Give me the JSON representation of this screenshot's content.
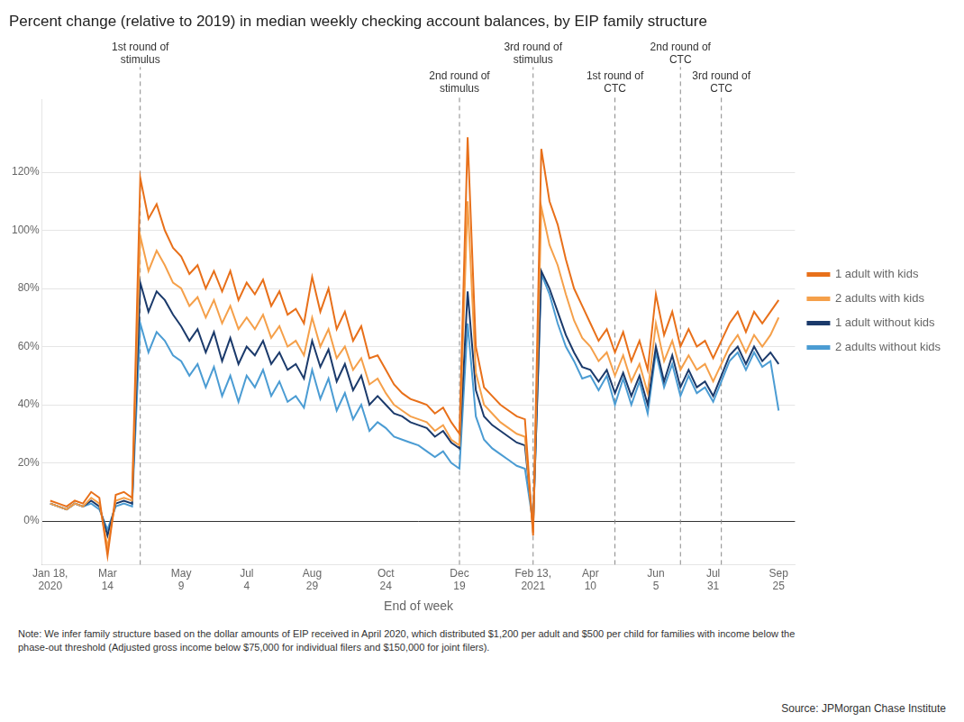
{
  "chart_data": {
    "type": "line",
    "title": "Percent change (relative to 2019) in median weekly checking account balances, by EIP family structure",
    "xlabel": "End of week",
    "note": "Note: We infer family structure based on the dollar amounts of EIP received in April 2020, which distributed $1,200 per adult and $500 per child for families with income below the\nphase-out threshold (Adjusted gross income below $75,000 for individual filers and $150,000 for joint filers).",
    "source": "Source: JPMorgan Chase Institute",
    "x": [
      0,
      1,
      2,
      3,
      4,
      5,
      6,
      7,
      8,
      9,
      10,
      11,
      12,
      13,
      14,
      15,
      16,
      17,
      18,
      19,
      20,
      21,
      22,
      23,
      24,
      25,
      26,
      27,
      28,
      29,
      30,
      31,
      32,
      33,
      34,
      35,
      36,
      37,
      38,
      39,
      40,
      41,
      42,
      43,
      44,
      45,
      46,
      47,
      48,
      49,
      50,
      51,
      52,
      53,
      54,
      55,
      56,
      57,
      58,
      59,
      60,
      61,
      62,
      63,
      64,
      65,
      66,
      67,
      68,
      69,
      70,
      71,
      72,
      73,
      74,
      75,
      76,
      77,
      78,
      79,
      80,
      81,
      82,
      83,
      84,
      85,
      86,
      87,
      88,
      89
    ],
    "xlim": [
      -1,
      91
    ],
    "xticks": [
      {
        "value": 0,
        "label": "Jan 18,\n2020"
      },
      {
        "value": 7,
        "label": "Mar\n14"
      },
      {
        "value": 16,
        "label": "May\n9"
      },
      {
        "value": 24,
        "label": "Jul\n4"
      },
      {
        "value": 32,
        "label": "Aug\n29"
      },
      {
        "value": 41,
        "label": "Oct\n24"
      },
      {
        "value": 50,
        "label": "Dec\n19"
      },
      {
        "value": 59,
        "label": "Feb 13,\n2021"
      },
      {
        "value": 66,
        "label": "Apr\n10"
      },
      {
        "value": 74,
        "label": "Jun\n5"
      },
      {
        "value": 81,
        "label": "Jul\n31"
      },
      {
        "value": 89,
        "label": "Sep\n25"
      }
    ],
    "ylim": [
      -0.15,
      1.45
    ],
    "yticks": [
      {
        "value": 0.0,
        "label": "0%"
      },
      {
        "value": 0.2,
        "label": "20%"
      },
      {
        "value": 0.4,
        "label": "40%"
      },
      {
        "value": 0.6,
        "label": "60%"
      },
      {
        "value": 0.8,
        "label": "80%"
      },
      {
        "value": 1.0,
        "label": "100%"
      },
      {
        "value": 1.2,
        "label": "120%"
      }
    ],
    "grid": "y",
    "legend": "right",
    "marker": "none",
    "annotations": [
      {
        "x": 11,
        "label": "1st round of\nstimulus"
      },
      {
        "x": 50,
        "label": "2nd round of\nstimulus"
      },
      {
        "x": 59,
        "label": "3rd round of\nstimulus"
      },
      {
        "x": 69,
        "label": "1st round of\nCTC"
      },
      {
        "x": 77,
        "label": "2nd round of\nCTC"
      },
      {
        "x": 82,
        "label": "3rd round of\nCTC"
      }
    ],
    "series": [
      {
        "name": "1 adult with kids",
        "color": "#E8701A",
        "values": [
          0.07,
          0.06,
          0.05,
          0.07,
          0.06,
          0.1,
          0.08,
          -0.12,
          0.09,
          0.1,
          0.08,
          1.18,
          1.04,
          1.09,
          1.0,
          0.94,
          0.91,
          0.85,
          0.88,
          0.8,
          0.86,
          0.79,
          0.86,
          0.76,
          0.82,
          0.78,
          0.83,
          0.74,
          0.79,
          0.71,
          0.73,
          0.68,
          0.84,
          0.72,
          0.8,
          0.66,
          0.72,
          0.62,
          0.67,
          0.56,
          0.57,
          0.52,
          0.47,
          0.44,
          0.42,
          0.41,
          0.4,
          0.37,
          0.39,
          0.34,
          0.3,
          1.32,
          0.6,
          0.46,
          0.43,
          0.4,
          0.38,
          0.36,
          0.35,
          -0.05,
          1.28,
          1.1,
          1.02,
          0.9,
          0.8,
          0.74,
          0.68,
          0.62,
          0.66,
          0.58,
          0.65,
          0.55,
          0.62,
          0.52,
          0.78,
          0.64,
          0.72,
          0.6,
          0.66,
          0.6,
          0.62,
          0.56,
          0.62,
          0.68,
          0.72,
          0.65,
          0.72,
          0.68,
          0.72,
          0.76
        ]
      },
      {
        "name": "2 adults with kids",
        "color": "#F5A04A",
        "values": [
          0.06,
          0.05,
          0.04,
          0.06,
          0.05,
          0.08,
          0.06,
          -0.09,
          0.07,
          0.08,
          0.07,
          0.98,
          0.86,
          0.93,
          0.88,
          0.82,
          0.8,
          0.74,
          0.77,
          0.7,
          0.76,
          0.68,
          0.74,
          0.66,
          0.7,
          0.66,
          0.71,
          0.63,
          0.67,
          0.6,
          0.62,
          0.57,
          0.7,
          0.6,
          0.66,
          0.56,
          0.6,
          0.52,
          0.56,
          0.47,
          0.49,
          0.44,
          0.4,
          0.38,
          0.36,
          0.35,
          0.34,
          0.31,
          0.33,
          0.28,
          0.26,
          1.1,
          0.51,
          0.4,
          0.37,
          0.34,
          0.32,
          0.3,
          0.29,
          -0.04,
          1.08,
          0.95,
          0.88,
          0.78,
          0.69,
          0.63,
          0.6,
          0.55,
          0.58,
          0.5,
          0.57,
          0.48,
          0.54,
          0.44,
          0.68,
          0.55,
          0.62,
          0.52,
          0.57,
          0.52,
          0.54,
          0.48,
          0.54,
          0.6,
          0.64,
          0.58,
          0.64,
          0.6,
          0.64,
          0.7
        ]
      },
      {
        "name": "1 adult without kids",
        "color": "#1B3A6B",
        "values": [
          0.06,
          0.05,
          0.04,
          0.06,
          0.05,
          0.07,
          0.05,
          -0.05,
          0.06,
          0.07,
          0.06,
          0.82,
          0.72,
          0.79,
          0.76,
          0.71,
          0.67,
          0.62,
          0.66,
          0.58,
          0.65,
          0.55,
          0.63,
          0.54,
          0.6,
          0.57,
          0.62,
          0.54,
          0.58,
          0.52,
          0.54,
          0.49,
          0.62,
          0.53,
          0.59,
          0.48,
          0.54,
          0.45,
          0.5,
          0.4,
          0.43,
          0.4,
          0.37,
          0.36,
          0.34,
          0.33,
          0.32,
          0.29,
          0.31,
          0.27,
          0.25,
          0.79,
          0.45,
          0.36,
          0.33,
          0.31,
          0.29,
          0.27,
          0.26,
          -0.02,
          0.86,
          0.8,
          0.72,
          0.64,
          0.58,
          0.53,
          0.52,
          0.48,
          0.52,
          0.44,
          0.51,
          0.43,
          0.5,
          0.4,
          0.6,
          0.48,
          0.57,
          0.46,
          0.52,
          0.46,
          0.48,
          0.43,
          0.5,
          0.57,
          0.6,
          0.54,
          0.6,
          0.55,
          0.58,
          0.54
        ]
      },
      {
        "name": "2 adults without kids",
        "color": "#4B9CD3",
        "values": [
          0.06,
          0.05,
          0.04,
          0.06,
          0.05,
          0.06,
          0.04,
          -0.03,
          0.05,
          0.06,
          0.05,
          0.68,
          0.58,
          0.65,
          0.62,
          0.57,
          0.55,
          0.5,
          0.54,
          0.46,
          0.53,
          0.43,
          0.5,
          0.41,
          0.5,
          0.46,
          0.52,
          0.43,
          0.48,
          0.41,
          0.43,
          0.39,
          0.52,
          0.42,
          0.49,
          0.38,
          0.44,
          0.35,
          0.4,
          0.31,
          0.34,
          0.32,
          0.29,
          0.28,
          0.27,
          0.26,
          0.24,
          0.22,
          0.24,
          0.2,
          0.18,
          0.68,
          0.36,
          0.28,
          0.25,
          0.23,
          0.21,
          0.19,
          0.18,
          -0.01,
          0.85,
          0.78,
          0.68,
          0.6,
          0.55,
          0.49,
          0.5,
          0.45,
          0.5,
          0.4,
          0.49,
          0.4,
          0.48,
          0.37,
          0.58,
          0.46,
          0.54,
          0.43,
          0.5,
          0.44,
          0.46,
          0.41,
          0.48,
          0.55,
          0.58,
          0.52,
          0.58,
          0.53,
          0.55,
          0.38
        ]
      }
    ]
  }
}
